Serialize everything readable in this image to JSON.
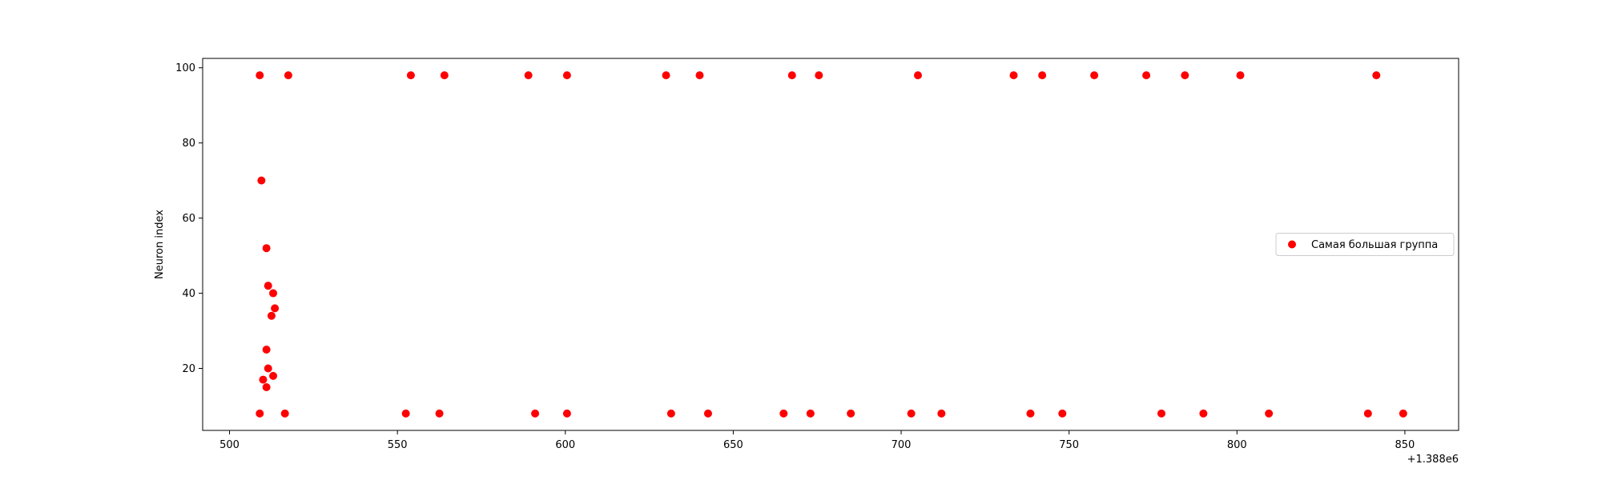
{
  "chart_data": {
    "type": "scatter",
    "title": "",
    "xlabel": "",
    "ylabel": "Neuron index",
    "x_offset_label": "+1.388e6",
    "xlim": [
      1388492,
      1388866
    ],
    "ylim": [
      3.5,
      102.5
    ],
    "x_ticks": [
      1388500,
      1388550,
      1388600,
      1388650,
      1388700,
      1388750,
      1388800,
      1388850
    ],
    "x_tick_labels": [
      "500",
      "550",
      "600",
      "650",
      "700",
      "750",
      "800",
      "850"
    ],
    "y_ticks": [
      20,
      40,
      60,
      80,
      100
    ],
    "y_tick_labels": [
      "20",
      "40",
      "60",
      "80",
      "100"
    ],
    "grid": false,
    "legend_position": "center-right",
    "series": [
      {
        "name": "Самая большая группа",
        "color": "#ff0000",
        "marker": "circle",
        "points": [
          {
            "x": 1388509.0,
            "y": 98
          },
          {
            "x": 1388517.5,
            "y": 98
          },
          {
            "x": 1388554.0,
            "y": 98
          },
          {
            "x": 1388564.0,
            "y": 98
          },
          {
            "x": 1388589.0,
            "y": 98
          },
          {
            "x": 1388600.5,
            "y": 98
          },
          {
            "x": 1388630.0,
            "y": 98
          },
          {
            "x": 1388640.0,
            "y": 98
          },
          {
            "x": 1388667.5,
            "y": 98
          },
          {
            "x": 1388675.5,
            "y": 98
          },
          {
            "x": 1388705.0,
            "y": 98
          },
          {
            "x": 1388733.5,
            "y": 98
          },
          {
            "x": 1388742.0,
            "y": 98
          },
          {
            "x": 1388757.5,
            "y": 98
          },
          {
            "x": 1388773.0,
            "y": 98
          },
          {
            "x": 1388784.5,
            "y": 98
          },
          {
            "x": 1388801.0,
            "y": 98
          },
          {
            "x": 1388841.5,
            "y": 98
          },
          {
            "x": 1388509.5,
            "y": 70
          },
          {
            "x": 1388511.0,
            "y": 52
          },
          {
            "x": 1388511.5,
            "y": 42
          },
          {
            "x": 1388513.0,
            "y": 40
          },
          {
            "x": 1388513.5,
            "y": 36
          },
          {
            "x": 1388512.5,
            "y": 34
          },
          {
            "x": 1388511.0,
            "y": 25
          },
          {
            "x": 1388511.5,
            "y": 20
          },
          {
            "x": 1388513.0,
            "y": 18
          },
          {
            "x": 1388510.0,
            "y": 17
          },
          {
            "x": 1388511.0,
            "y": 15
          },
          {
            "x": 1388509.0,
            "y": 8
          },
          {
            "x": 1388516.5,
            "y": 8
          },
          {
            "x": 1388552.5,
            "y": 8
          },
          {
            "x": 1388562.5,
            "y": 8
          },
          {
            "x": 1388591.0,
            "y": 8
          },
          {
            "x": 1388600.5,
            "y": 8
          },
          {
            "x": 1388631.5,
            "y": 8
          },
          {
            "x": 1388642.5,
            "y": 8
          },
          {
            "x": 1388665.0,
            "y": 8
          },
          {
            "x": 1388673.0,
            "y": 8
          },
          {
            "x": 1388685.0,
            "y": 8
          },
          {
            "x": 1388703.0,
            "y": 8
          },
          {
            "x": 1388712.0,
            "y": 8
          },
          {
            "x": 1388738.5,
            "y": 8
          },
          {
            "x": 1388748.0,
            "y": 8
          },
          {
            "x": 1388777.5,
            "y": 8
          },
          {
            "x": 1388790.0,
            "y": 8
          },
          {
            "x": 1388809.5,
            "y": 8
          },
          {
            "x": 1388839.0,
            "y": 8
          },
          {
            "x": 1388849.5,
            "y": 8
          }
        ]
      }
    ]
  }
}
